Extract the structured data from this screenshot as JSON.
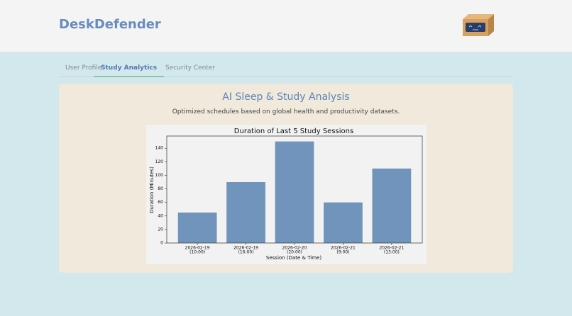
{
  "header": {
    "title": "DeskDefender"
  },
  "tabs": [
    "User Profile",
    "Study Analytics",
    "Security Center"
  ],
  "card": {
    "title": "AI Sleep & Study Analysis",
    "subtitle": "Optimized schedules based on global health and productivity datasets."
  },
  "chart_data": {
    "type": "bar",
    "title": "Duration of Last 5 Study Sessions",
    "x_label": "Session (Date & Time)",
    "y_label": "Duration (Minutes)",
    "categories": [
      [
        "2026-02-19",
        "(10:00)"
      ],
      [
        "2026-02-19",
        "(16:00)"
      ],
      [
        "2026-02-20",
        "(20:00)"
      ],
      [
        "2026-02-21",
        "(9:00)"
      ],
      [
        "2026-02-21",
        "(13:00)"
      ]
    ],
    "values": [
      45,
      90,
      150,
      60,
      110
    ],
    "color": "#7094bc",
    "ylim": [
      0,
      158
    ],
    "yticks": [
      0,
      20,
      40,
      60,
      80,
      100,
      120,
      140
    ],
    "grid": false
  }
}
